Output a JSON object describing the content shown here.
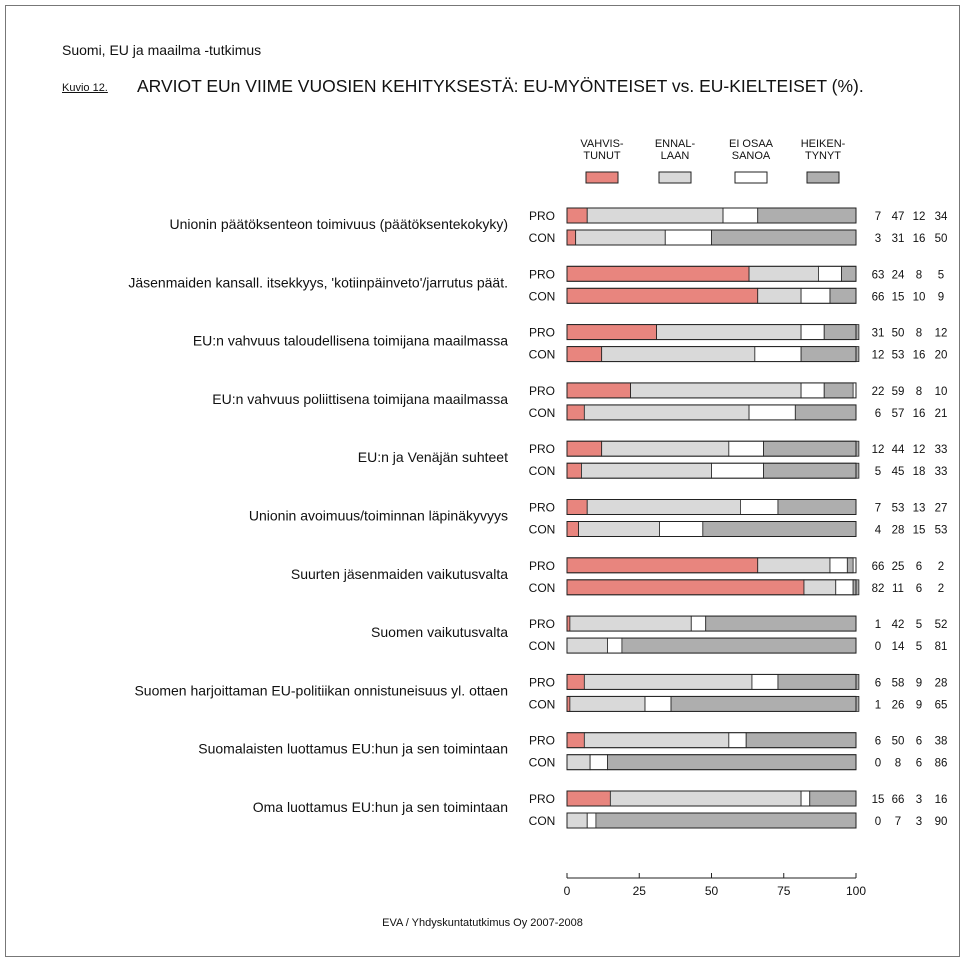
{
  "header": {
    "survey": "Suomi, EU ja maailma -tutkimus",
    "figure_no": "Kuvio 12.",
    "title": "ARVIOT EUn VIIME VUOSIEN KEHITYKSESTÄ: EU-MYÖNTEISET vs. EU-KIELTEISET (%)."
  },
  "source": "EVA / Yhdyskuntatutkimus Oy 2007-2008",
  "chart_data": {
    "type": "bar",
    "stacked": true,
    "orientation": "horizontal",
    "xlim": [
      0,
      100
    ],
    "xticks": [
      0,
      25,
      50,
      75,
      100
    ],
    "group_labels": [
      "PRO",
      "CON"
    ],
    "legend": [
      {
        "lines": [
          "VAHVIS-",
          "TUNUT"
        ],
        "color": "#e8857e"
      },
      {
        "lines": [
          "ENNAL-",
          "LAAN"
        ],
        "color": "#d9d9d9"
      },
      {
        "lines": [
          "EI OSAA",
          "SANOA"
        ],
        "color": "#ffffff"
      },
      {
        "lines": [
          "HEIKEN-",
          "TYNYT"
        ],
        "color": "#aeaeae"
      }
    ],
    "legend_position": "top",
    "categories": [
      {
        "label": "Unionin päätöksenteon toimivuus (päätöksentekokyky)",
        "pro": [
          7,
          47,
          12,
          34
        ],
        "con": [
          3,
          31,
          16,
          50
        ]
      },
      {
        "label": "Jäsenmaiden kansall. itsekkyys, 'kotiinpäinveto'/jarrutus päät.",
        "pro": [
          63,
          24,
          8,
          5
        ],
        "con": [
          66,
          15,
          10,
          9
        ]
      },
      {
        "label": "EU:n vahvuus taloudellisena toimijana maailmassa",
        "pro": [
          31,
          50,
          8,
          12
        ],
        "con": [
          12,
          53,
          16,
          20
        ]
      },
      {
        "label": "EU:n vahvuus poliittisena toimijana maailmassa",
        "pro": [
          22,
          59,
          8,
          10
        ],
        "con": [
          6,
          57,
          16,
          21
        ]
      },
      {
        "label": "EU:n ja Venäjän suhteet",
        "pro": [
          12,
          44,
          12,
          33
        ],
        "con": [
          5,
          45,
          18,
          33
        ]
      },
      {
        "label": "Unionin avoimuus/toiminnan läpinäkyvyys",
        "pro": [
          7,
          53,
          13,
          27
        ],
        "con": [
          4,
          28,
          15,
          53
        ]
      },
      {
        "label": "Suurten jäsenmaiden vaikutusvalta",
        "pro": [
          66,
          25,
          6,
          2
        ],
        "con": [
          82,
          11,
          6,
          2
        ]
      },
      {
        "label": "Suomen vaikutusvalta",
        "pro": [
          1,
          42,
          5,
          52
        ],
        "con": [
          0,
          14,
          5,
          81
        ]
      },
      {
        "label": "Suomen harjoittaman EU-politiikan onnistuneisuus yl. ottaen",
        "pro": [
          6,
          58,
          9,
          28
        ],
        "con": [
          1,
          26,
          9,
          65
        ]
      },
      {
        "label": "Suomalaisten luottamus EU:hun ja sen toimintaan",
        "pro": [
          6,
          50,
          6,
          38
        ],
        "con": [
          0,
          8,
          6,
          86
        ]
      },
      {
        "label": "Oma luottamus EU:hun ja sen toimintaan",
        "pro": [
          15,
          66,
          3,
          16
        ],
        "con": [
          0,
          7,
          3,
          90
        ]
      }
    ]
  }
}
